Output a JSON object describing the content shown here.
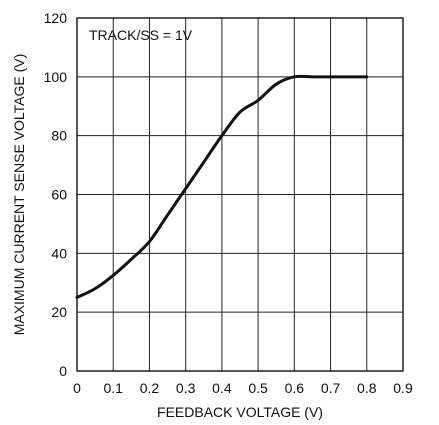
{
  "chart_data": {
    "type": "line",
    "xlabel": "FEEDBACK VOLTAGE (V)",
    "ylabel": "MAXIMUM CURRENT SENSE VOLTAGE (V)",
    "annotation": "TRACK/SS = 1V",
    "xlim": [
      0,
      0.9
    ],
    "ylim": [
      0,
      120
    ],
    "xticks": [
      "0",
      "0.1",
      "0.2",
      "0.3",
      "0.4",
      "0.5",
      "0.6",
      "0.7",
      "0.8",
      "0.9"
    ],
    "yticks": [
      "0",
      "20",
      "40",
      "60",
      "80",
      "100",
      "120"
    ],
    "grid": true,
    "series": [
      {
        "x": [
          0,
          0.05,
          0.1,
          0.15,
          0.2,
          0.25,
          0.3,
          0.35,
          0.4,
          0.45,
          0.5,
          0.55,
          0.6,
          0.65,
          0.7,
          0.75,
          0.8
        ],
        "y": [
          25,
          28,
          32.5,
          38,
          44,
          53,
          62,
          71,
          80,
          88,
          92,
          97.5,
          100,
          100,
          100,
          100,
          100
        ]
      }
    ]
  }
}
